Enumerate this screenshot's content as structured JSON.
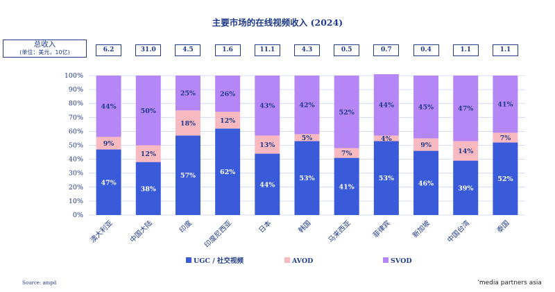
{
  "title": "主要市场的在线视频收入 (2024)",
  "totals_header": {
    "line1": "总收入",
    "line2": "(单位：美元，10亿)"
  },
  "totals": [
    "6.2",
    "31.0",
    "4.5",
    "1.6",
    "11.1",
    "4.3",
    "0.5",
    "0.7",
    "0.4",
    "1.1",
    "1.1"
  ],
  "source": "Source: ampd",
  "brand": "ʼmedia partners asia",
  "colors": {
    "ugc": "#3a5bd9",
    "avod": "#f8b9c0",
    "svod": "#b586f5",
    "text": "#1f3a8a",
    "grid": "#c8d3f2"
  },
  "chart_data": {
    "type": "bar",
    "stacked": true,
    "title": "主要市场的在线视频收入 (2024)",
    "categories": [
      "澳大利亚",
      "中国大陆",
      "印度",
      "印度尼西亚",
      "日本",
      "韩国",
      "马来西亚",
      "菲律宾",
      "新加坡",
      "中国台湾",
      "泰国"
    ],
    "series": [
      {
        "name": "UGC / 社交视频",
        "values": [
          47,
          38,
          57,
          62,
          44,
          53,
          41,
          53,
          46,
          39,
          52
        ]
      },
      {
        "name": "AVOD",
        "values": [
          9,
          12,
          18,
          12,
          13,
          5,
          7,
          4,
          9,
          14,
          7
        ]
      },
      {
        "name": "SVOD",
        "values": [
          44,
          50,
          25,
          26,
          43,
          42,
          52,
          44,
          45,
          47,
          41
        ]
      }
    ],
    "ylim": [
      0,
      100
    ],
    "yticks": [
      "0%",
      "10%",
      "20%",
      "30%",
      "40%",
      "50%",
      "60%",
      "70%",
      "80%",
      "90%",
      "100%"
    ],
    "grid": true,
    "legend_position": "bottom"
  }
}
